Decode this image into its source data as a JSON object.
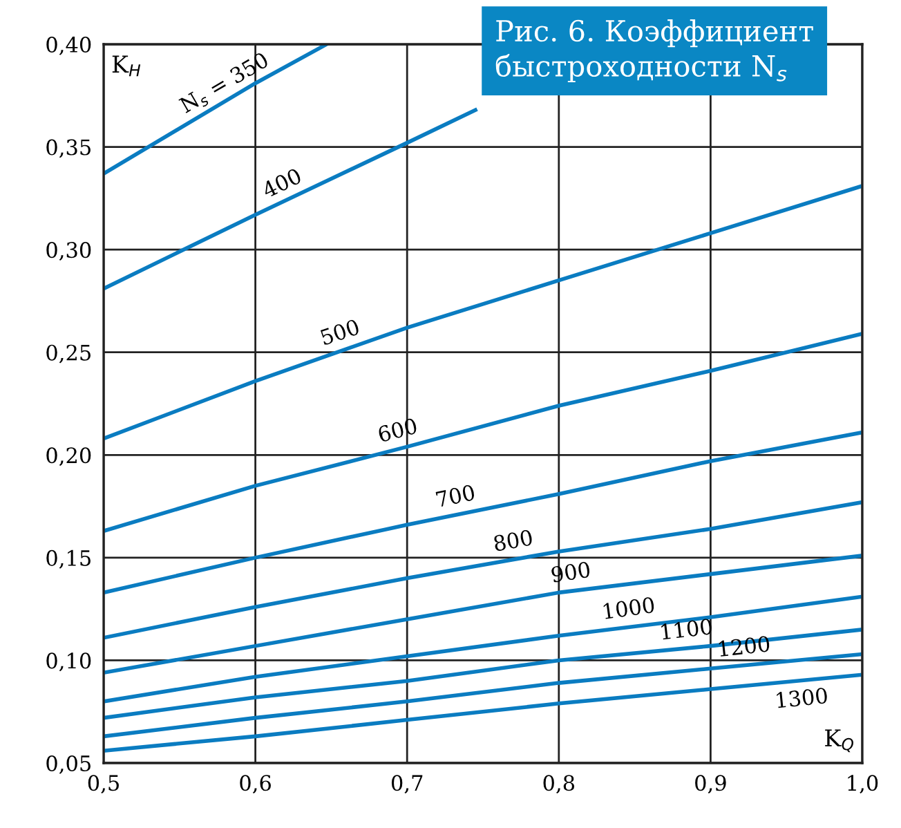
{
  "chart_data": {
    "type": "line",
    "title": "Рис. 6. Коэффициент быстроходности N$_{s}$",
    "xlabel": "K$_{Q}$",
    "ylabel": "K$_{H}$",
    "xlim": [
      0.5,
      1.0
    ],
    "ylim": [
      0.05,
      0.4
    ],
    "xticks": [
      {
        "value": 0.5,
        "label": "0,5"
      },
      {
        "value": 0.6,
        "label": "0,6"
      },
      {
        "value": 0.7,
        "label": "0,7"
      },
      {
        "value": 0.8,
        "label": "0,8"
      },
      {
        "value": 0.9,
        "label": "0,9"
      },
      {
        "value": 1.0,
        "label": "1,0"
      }
    ],
    "yticks": [
      {
        "value": 0.05,
        "label": "0,05"
      },
      {
        "value": 0.1,
        "label": "0,10"
      },
      {
        "value": 0.15,
        "label": "0,15"
      },
      {
        "value": 0.2,
        "label": "0,20"
      },
      {
        "value": 0.25,
        "label": "0,25"
      },
      {
        "value": 0.3,
        "label": "0,30"
      },
      {
        "value": 0.35,
        "label": "0,35"
      },
      {
        "value": 0.4,
        "label": "0,40"
      }
    ],
    "grid": true,
    "legend": false,
    "marker": "none",
    "line_style": "solid",
    "series": [
      {
        "name": "N$_{s}$ = 350",
        "color": "#0a7cc1",
        "x": [
          0.5,
          0.6,
          0.647
        ],
        "values": [
          0.337,
          0.381,
          0.4
        ]
      },
      {
        "name": "400",
        "color": "#0a7cc1",
        "x": [
          0.5,
          0.6,
          0.7,
          0.745
        ],
        "values": [
          0.281,
          0.317,
          0.352,
          0.368
        ]
      },
      {
        "name": "500",
        "color": "#0a7cc1",
        "x": [
          0.5,
          0.6,
          0.7,
          0.8,
          0.9,
          1.0
        ],
        "values": [
          0.208,
          0.236,
          0.262,
          0.285,
          0.308,
          0.331
        ]
      },
      {
        "name": "600",
        "color": "#0a7cc1",
        "x": [
          0.5,
          0.6,
          0.7,
          0.8,
          0.9,
          1.0
        ],
        "values": [
          0.163,
          0.185,
          0.204,
          0.224,
          0.241,
          0.259
        ]
      },
      {
        "name": "700",
        "color": "#0a7cc1",
        "x": [
          0.5,
          0.6,
          0.7,
          0.8,
          0.9,
          1.0
        ],
        "values": [
          0.133,
          0.15,
          0.166,
          0.181,
          0.197,
          0.211
        ]
      },
      {
        "name": "800",
        "color": "#0a7cc1",
        "x": [
          0.5,
          0.6,
          0.7,
          0.8,
          0.9,
          1.0
        ],
        "values": [
          0.111,
          0.126,
          0.14,
          0.153,
          0.164,
          0.177
        ]
      },
      {
        "name": "900",
        "color": "#0a7cc1",
        "x": [
          0.5,
          0.6,
          0.7,
          0.8,
          0.9,
          1.0
        ],
        "values": [
          0.094,
          0.107,
          0.12,
          0.133,
          0.142,
          0.151
        ]
      },
      {
        "name": "1000",
        "color": "#0a7cc1",
        "x": [
          0.5,
          0.6,
          0.7,
          0.8,
          0.9,
          1.0
        ],
        "values": [
          0.08,
          0.092,
          0.102,
          0.112,
          0.121,
          0.131
        ]
      },
      {
        "name": "1100",
        "color": "#0a7cc1",
        "x": [
          0.5,
          0.6,
          0.7,
          0.8,
          0.9,
          1.0
        ],
        "values": [
          0.072,
          0.082,
          0.09,
          0.1,
          0.107,
          0.115
        ]
      },
      {
        "name": "1200",
        "color": "#0a7cc1",
        "x": [
          0.5,
          0.6,
          0.7,
          0.8,
          0.9,
          1.0
        ],
        "values": [
          0.063,
          0.072,
          0.08,
          0.089,
          0.096,
          0.103
        ]
      },
      {
        "name": "1300",
        "color": "#0a7cc1",
        "x": [
          0.5,
          0.6,
          0.7,
          0.8,
          0.9,
          1.0
        ],
        "values": [
          0.056,
          0.063,
          0.071,
          0.079,
          0.086,
          0.093
        ]
      }
    ]
  }
}
